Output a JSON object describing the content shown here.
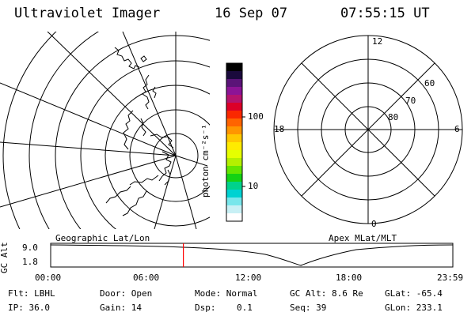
{
  "header": {
    "instrument": "Ultraviolet Imager",
    "date": "16 Sep 07",
    "time": "07:55:15 UT"
  },
  "colorbar": {
    "unit_label": "photon cm⁻²s⁻¹",
    "tick_100": "100",
    "tick_10": "10"
  },
  "geo_map": {
    "label": "Geographic Lat/Lon"
  },
  "mlt_plot": {
    "label": "Apex MLat/MLT",
    "mlt_labels": {
      "top": "12",
      "left": "18",
      "right": "6",
      "bottom": "0"
    },
    "lat_labels": [
      "60",
      "70",
      "80"
    ]
  },
  "timeline": {
    "ylabel": "GC Alt",
    "y_max": "9.0",
    "y_min": "1.8",
    "ticks": [
      "00:00",
      "06:00",
      "12:00",
      "18:00",
      "23:59"
    ],
    "current_hour": 7.92
  },
  "status": {
    "filter": "Flt: LBHL",
    "door": "Door: Open",
    "mode": "Mode: Normal",
    "gc_alt": "GC Alt: 8.6 Re",
    "glat": "GLat: -65.4",
    "ip": "IP: 36.0",
    "gain": "Gain: 14",
    "dsp": "Dsp:    0.1",
    "seq": "Seq: 39",
    "glon": "GLon: 233.1"
  },
  "colors": {
    "colorbar": [
      "#000000",
      "#1a0a3c",
      "#5a1478",
      "#8c1496",
      "#b4146e",
      "#dc0028",
      "#fa2800",
      "#ff6400",
      "#ff9600",
      "#ffc800",
      "#ffeb00",
      "#e6ff00",
      "#b4f000",
      "#64e600",
      "#14d214",
      "#00d28c",
      "#00d2d2",
      "#78e6eb",
      "#c8f0f5",
      "#ffffff"
    ],
    "marker": "#ff0000"
  }
}
